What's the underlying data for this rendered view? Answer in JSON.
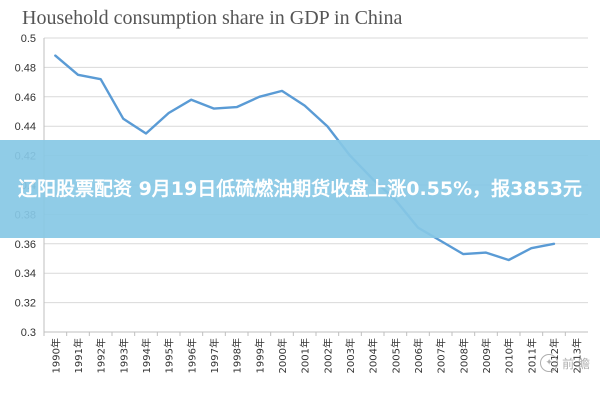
{
  "chart_data": {
    "type": "line",
    "title": "Household consumption share in GDP in China",
    "xlabel": "",
    "ylabel": "",
    "ylim": [
      0.3,
      0.5
    ],
    "yticks": [
      0.3,
      0.32,
      0.34,
      0.36,
      0.38,
      0.4,
      0.42,
      0.44,
      0.46,
      0.48,
      0.5
    ],
    "grid": true,
    "categories": [
      "1990年",
      "1991年",
      "1992年",
      "1993年",
      "1994年",
      "1995年",
      "1996年",
      "1997年",
      "1998年",
      "1999年",
      "2000年",
      "2001年",
      "2002年",
      "2003年",
      "2004年",
      "2005年",
      "2006年",
      "2007年",
      "2008年",
      "2009年",
      "2010年",
      "2011年",
      "2012年",
      "2013年"
    ],
    "series": [
      {
        "color": "#5a9bd5",
        "values": [
          0.488,
          0.475,
          0.472,
          0.445,
          0.435,
          0.449,
          0.458,
          0.452,
          0.453,
          0.46,
          0.464,
          0.454,
          0.44,
          0.42,
          0.404,
          0.39,
          0.371,
          0.362,
          0.353,
          0.354,
          0.349,
          0.357,
          0.36,
          null
        ]
      }
    ]
  },
  "banner": {
    "text": "辽阳股票配资 9月19日低硫燃油期货收盘上涨0.55%，报3853元",
    "background": "#87c8e6"
  },
  "watermark": {
    "text": "前 瞻"
  }
}
